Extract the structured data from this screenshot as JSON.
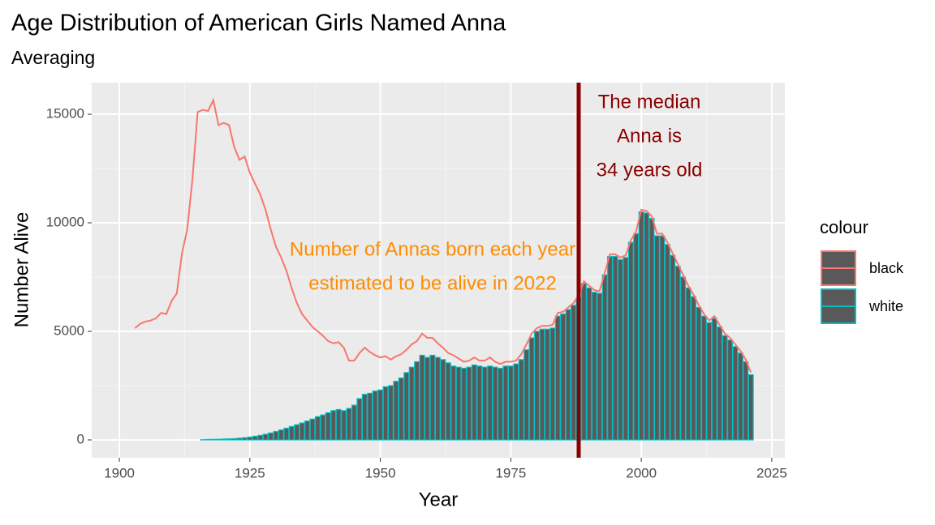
{
  "chart_data": {
    "type": "combo",
    "title": "Age Distribution of American Girls Named Anna",
    "subtitle": "Averaging",
    "x_label": "Year",
    "y_label": "Number Alive",
    "legend_title": "colour",
    "legend_position": "right",
    "grid": true,
    "x": [
      1903,
      1904,
      1905,
      1906,
      1907,
      1908,
      1909,
      1910,
      1911,
      1912,
      1913,
      1914,
      1915,
      1916,
      1917,
      1918,
      1919,
      1920,
      1921,
      1922,
      1923,
      1924,
      1925,
      1926,
      1927,
      1928,
      1929,
      1930,
      1931,
      1932,
      1933,
      1934,
      1935,
      1936,
      1937,
      1938,
      1939,
      1940,
      1941,
      1942,
      1943,
      1944,
      1945,
      1946,
      1947,
      1948,
      1949,
      1950,
      1951,
      1952,
      1953,
      1954,
      1955,
      1956,
      1957,
      1958,
      1959,
      1960,
      1961,
      1962,
      1963,
      1964,
      1965,
      1966,
      1967,
      1968,
      1969,
      1970,
      1971,
      1972,
      1973,
      1974,
      1975,
      1976,
      1977,
      1978,
      1979,
      1980,
      1981,
      1982,
      1983,
      1984,
      1985,
      1986,
      1987,
      1988,
      1989,
      1990,
      1991,
      1992,
      1993,
      1994,
      1995,
      1996,
      1997,
      1998,
      1999,
      2000,
      2001,
      2002,
      2003,
      2004,
      2005,
      2006,
      2007,
      2008,
      2009,
      2010,
      2011,
      2012,
      2013,
      2014,
      2015,
      2016,
      2017,
      2018,
      2019,
      2020,
      2021
    ],
    "series": [
      {
        "name": "black",
        "type": "line",
        "color": "#F8766D",
        "values": [
          5150,
          5350,
          5450,
          5500,
          5600,
          5850,
          5800,
          6400,
          6750,
          8600,
          9700,
          12000,
          15100,
          15200,
          15150,
          15650,
          14500,
          14600,
          14500,
          13500,
          12900,
          13050,
          12300,
          11800,
          11300,
          10600,
          9700,
          8900,
          8400,
          7800,
          7000,
          6300,
          5800,
          5500,
          5200,
          5000,
          4800,
          4550,
          4450,
          4500,
          4250,
          3650,
          3650,
          4000,
          4250,
          4050,
          3900,
          3800,
          3850,
          3700,
          3850,
          3950,
          4150,
          4400,
          4550,
          4900,
          4700,
          4700,
          4450,
          4250,
          4000,
          3900,
          3750,
          3600,
          3650,
          3800,
          3650,
          3650,
          3800,
          3600,
          3500,
          3600,
          3600,
          3650,
          3950,
          4400,
          4900,
          5150,
          5250,
          5250,
          5300,
          5850,
          5900,
          6100,
          6300,
          6650,
          7300,
          7100,
          6900,
          6850,
          7700,
          8550,
          8550,
          8400,
          8500,
          9200,
          9600,
          10600,
          10550,
          10300,
          9500,
          9500,
          9100,
          8600,
          8100,
          7600,
          7100,
          6700,
          6200,
          5800,
          5500,
          5700,
          5300,
          4900,
          4700,
          4400,
          4100,
          3700,
          3100
        ]
      },
      {
        "name": "white",
        "type": "bar",
        "color": "#00BFC4",
        "fill": "#595959",
        "values": [
          0,
          0,
          0,
          0,
          0,
          0,
          0,
          0,
          0,
          0,
          0,
          0,
          0,
          10,
          20,
          25,
          30,
          40,
          50,
          60,
          80,
          100,
          130,
          170,
          210,
          260,
          320,
          390,
          460,
          540,
          620,
          700,
          780,
          870,
          960,
          1070,
          1150,
          1250,
          1350,
          1400,
          1350,
          1450,
          1600,
          1900,
          2100,
          2150,
          2250,
          2300,
          2450,
          2500,
          2700,
          2850,
          3100,
          3350,
          3600,
          3900,
          3800,
          3900,
          3800,
          3700,
          3550,
          3400,
          3350,
          3300,
          3350,
          3450,
          3400,
          3350,
          3400,
          3350,
          3300,
          3400,
          3400,
          3500,
          3700,
          4150,
          4700,
          5000,
          5100,
          5100,
          5150,
          5700,
          5800,
          6000,
          6200,
          6550,
          7200,
          7000,
          6800,
          6750,
          7600,
          8450,
          8450,
          8300,
          8400,
          9100,
          9500,
          10500,
          10450,
          10200,
          9400,
          9400,
          9000,
          8500,
          8000,
          7500,
          7000,
          6600,
          6100,
          5700,
          5400,
          5600,
          5200,
          4800,
          4600,
          4300,
          4000,
          3600,
          3000
        ]
      }
    ],
    "xlim": [
      1894.7,
      2027.5
    ],
    "ylim": [
      -821,
      16455
    ],
    "xticks": [
      1900,
      1925,
      1950,
      1975,
      2000,
      2025
    ],
    "yticks": [
      0,
      5000,
      10000,
      15000
    ],
    "vline": {
      "x": 1988,
      "color": "#8B0000"
    },
    "annotations": [
      {
        "lines": [
          "The median",
          "Anna is",
          "34 years old"
        ],
        "color": "#8B0000"
      },
      {
        "lines": [
          "Number of Annas born each year",
          "estimated to be alive in 2022"
        ],
        "color": "#FF8C00"
      }
    ]
  }
}
